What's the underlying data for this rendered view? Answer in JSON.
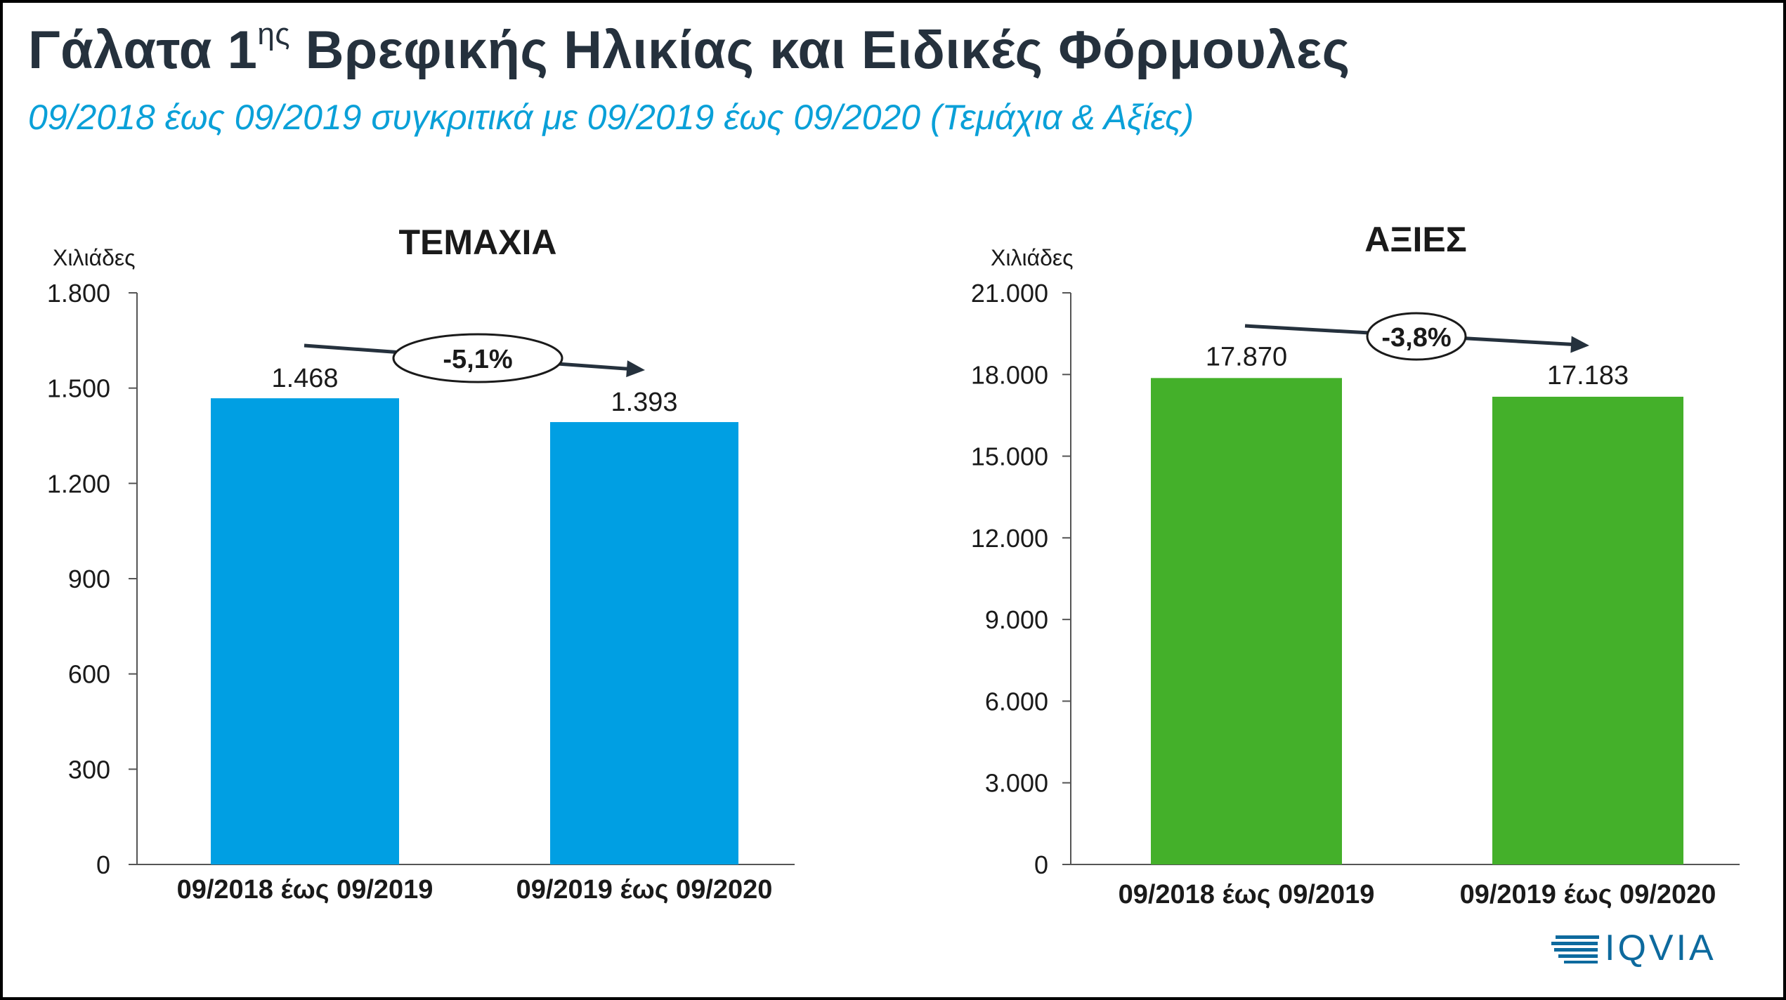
{
  "header": {
    "title_main": "Γάλατα 1",
    "title_sup": "ης",
    "title_rest": " Βρεφικής Ηλικίας και Ειδικές Φόρμουλες",
    "subtitle": "09/2018 έως 09/2019 συγκριτικά με 09/2019 έως 09/2020 (Τεμάχια & Αξίες)"
  },
  "logo": {
    "text": "IQVIA",
    "icon": "iqvia-stripes-icon",
    "color": "#0d6a9e"
  },
  "chart_data": [
    {
      "type": "bar",
      "title": "ΤΕΜΑΧΙΑ",
      "unit_label": "Χιλιάδες",
      "categories": [
        "09/2018 έως 09/2019",
        "09/2019 έως 09/2020"
      ],
      "values": [
        1468,
        1393
      ],
      "value_labels": [
        "1.468",
        "1.393"
      ],
      "ylim": [
        0,
        1800
      ],
      "yticks": [
        0,
        300,
        600,
        900,
        1200,
        1500,
        1800
      ],
      "ytick_labels": [
        "0",
        "300",
        "600",
        "900",
        "1.200",
        "1.500",
        "1.800"
      ],
      "color": "#009fe3",
      "change_label": "-5,1%",
      "grid": false
    },
    {
      "type": "bar",
      "title": "ΑΞΙΕΣ",
      "unit_label": "Χιλιάδες",
      "categories": [
        "09/2018 έως 09/2019",
        "09/2019 έως 09/2020"
      ],
      "values": [
        17870,
        17183
      ],
      "value_labels": [
        "17.870",
        "17.183"
      ],
      "ylim": [
        0,
        21000
      ],
      "yticks": [
        0,
        3000,
        6000,
        9000,
        12000,
        15000,
        18000,
        21000
      ],
      "ytick_labels": [
        "0",
        "3.000",
        "6.000",
        "9.000",
        "12.000",
        "15.000",
        "18.000",
        "21.000"
      ],
      "color": "#44b02a",
      "change_label": "-3,8%",
      "grid": false
    }
  ]
}
